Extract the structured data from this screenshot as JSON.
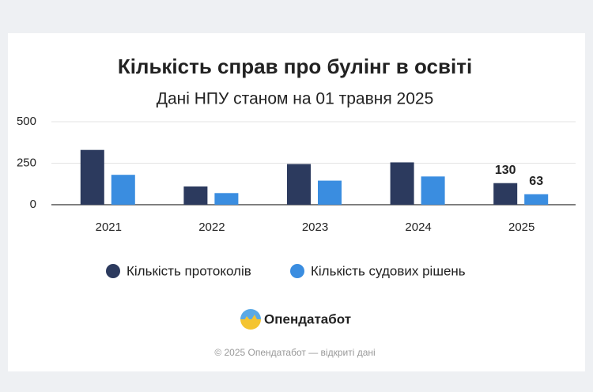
{
  "chart_data": {
    "type": "bar",
    "title": "Кількість справ про булінг в освіті",
    "subtitle": "Дані НПУ станом на 01 травня 2025",
    "categories": [
      "2021",
      "2022",
      "2023",
      "2024",
      "2025"
    ],
    "series": [
      {
        "name": "Кількість протоколів",
        "color": "#2c3a5e",
        "values": [
          330,
          110,
          245,
          255,
          130
        ],
        "value_labels": [
          null,
          null,
          null,
          null,
          "130"
        ]
      },
      {
        "name": "Кількість судових рішень",
        "color": "#3a8de0",
        "values": [
          180,
          70,
          145,
          170,
          63
        ],
        "value_labels": [
          null,
          null,
          null,
          null,
          "63"
        ]
      }
    ],
    "ylim": [
      0,
      500
    ],
    "yticks": [
      0,
      250,
      500
    ],
    "grid": true,
    "legend": "bottom"
  },
  "brand": "Опендатабот",
  "footer": "© 2025 Опендатабот — відкриті дані"
}
